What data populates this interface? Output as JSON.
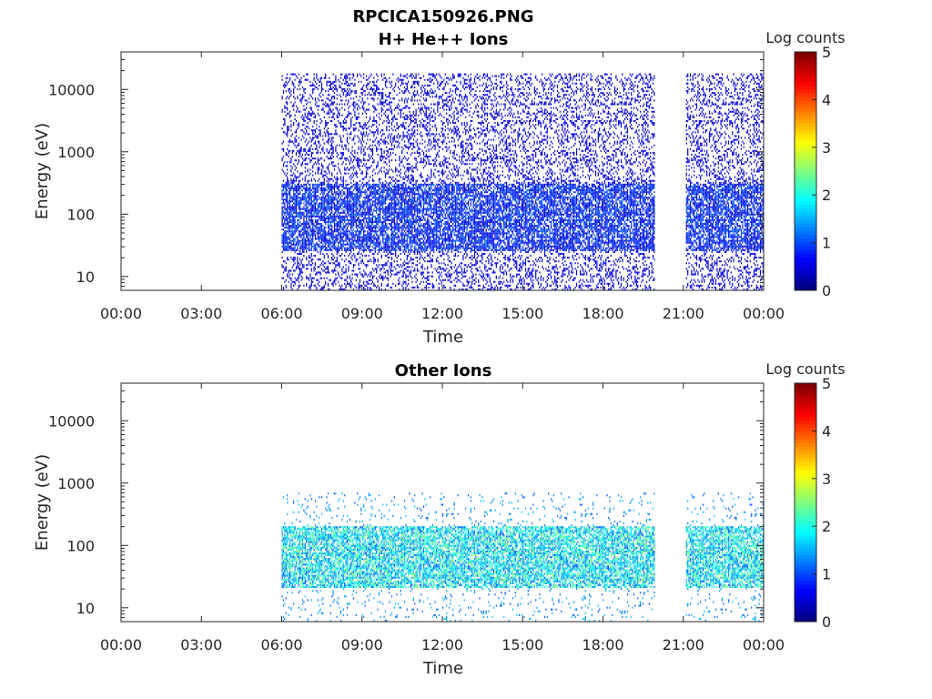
{
  "figure": {
    "title": "RPCICA150926.PNG",
    "colors": {
      "axis": "#262626",
      "background": "#ffffff"
    }
  },
  "chart_data": [
    {
      "type": "heatmap",
      "title": "H+ He++ Ions",
      "xlabel": "Time",
      "ylabel": "Energy (eV)",
      "x_ticks": [
        "00:00",
        "03:00",
        "06:00",
        "09:00",
        "12:00",
        "15:00",
        "18:00",
        "21:00",
        "00:00"
      ],
      "xlim_hours": [
        0,
        24
      ],
      "y_scale": "log",
      "y_ticks": [
        "10",
        "100",
        "1000",
        "10000"
      ],
      "ylim": [
        6,
        40000
      ],
      "colorbar": {
        "label": "Log counts",
        "ticks": [
          "0",
          "1",
          "2",
          "3",
          "4",
          "5"
        ],
        "range": [
          0,
          5
        ],
        "colormap": "jet"
      },
      "data_coverage_hours": [
        [
          6.0,
          19.9
        ],
        [
          21.1,
          24.0
        ]
      ],
      "energy_band_eV": [
        6,
        18000
      ],
      "peak_band_eV": [
        25,
        300
      ],
      "typical_log_counts": [
        0.3,
        1.2
      ]
    },
    {
      "type": "heatmap",
      "title": "Other Ions",
      "xlabel": "Time",
      "ylabel": "Energy (eV)",
      "x_ticks": [
        "00:00",
        "03:00",
        "06:00",
        "09:00",
        "12:00",
        "15:00",
        "18:00",
        "21:00",
        "00:00"
      ],
      "xlim_hours": [
        0,
        24
      ],
      "y_scale": "log",
      "y_ticks": [
        "10",
        "100",
        "1000",
        "10000"
      ],
      "ylim": [
        6,
        40000
      ],
      "colorbar": {
        "label": "Log counts",
        "ticks": [
          "0",
          "1",
          "2",
          "3",
          "4",
          "5"
        ],
        "range": [
          0,
          5
        ],
        "colormap": "jet"
      },
      "data_coverage_hours": [
        [
          6.0,
          19.9
        ],
        [
          21.1,
          24.0
        ]
      ],
      "energy_band_eV": [
        6,
        700
      ],
      "peak_band_eV": [
        20,
        200
      ],
      "typical_log_counts": [
        1.0,
        2.6
      ]
    }
  ]
}
